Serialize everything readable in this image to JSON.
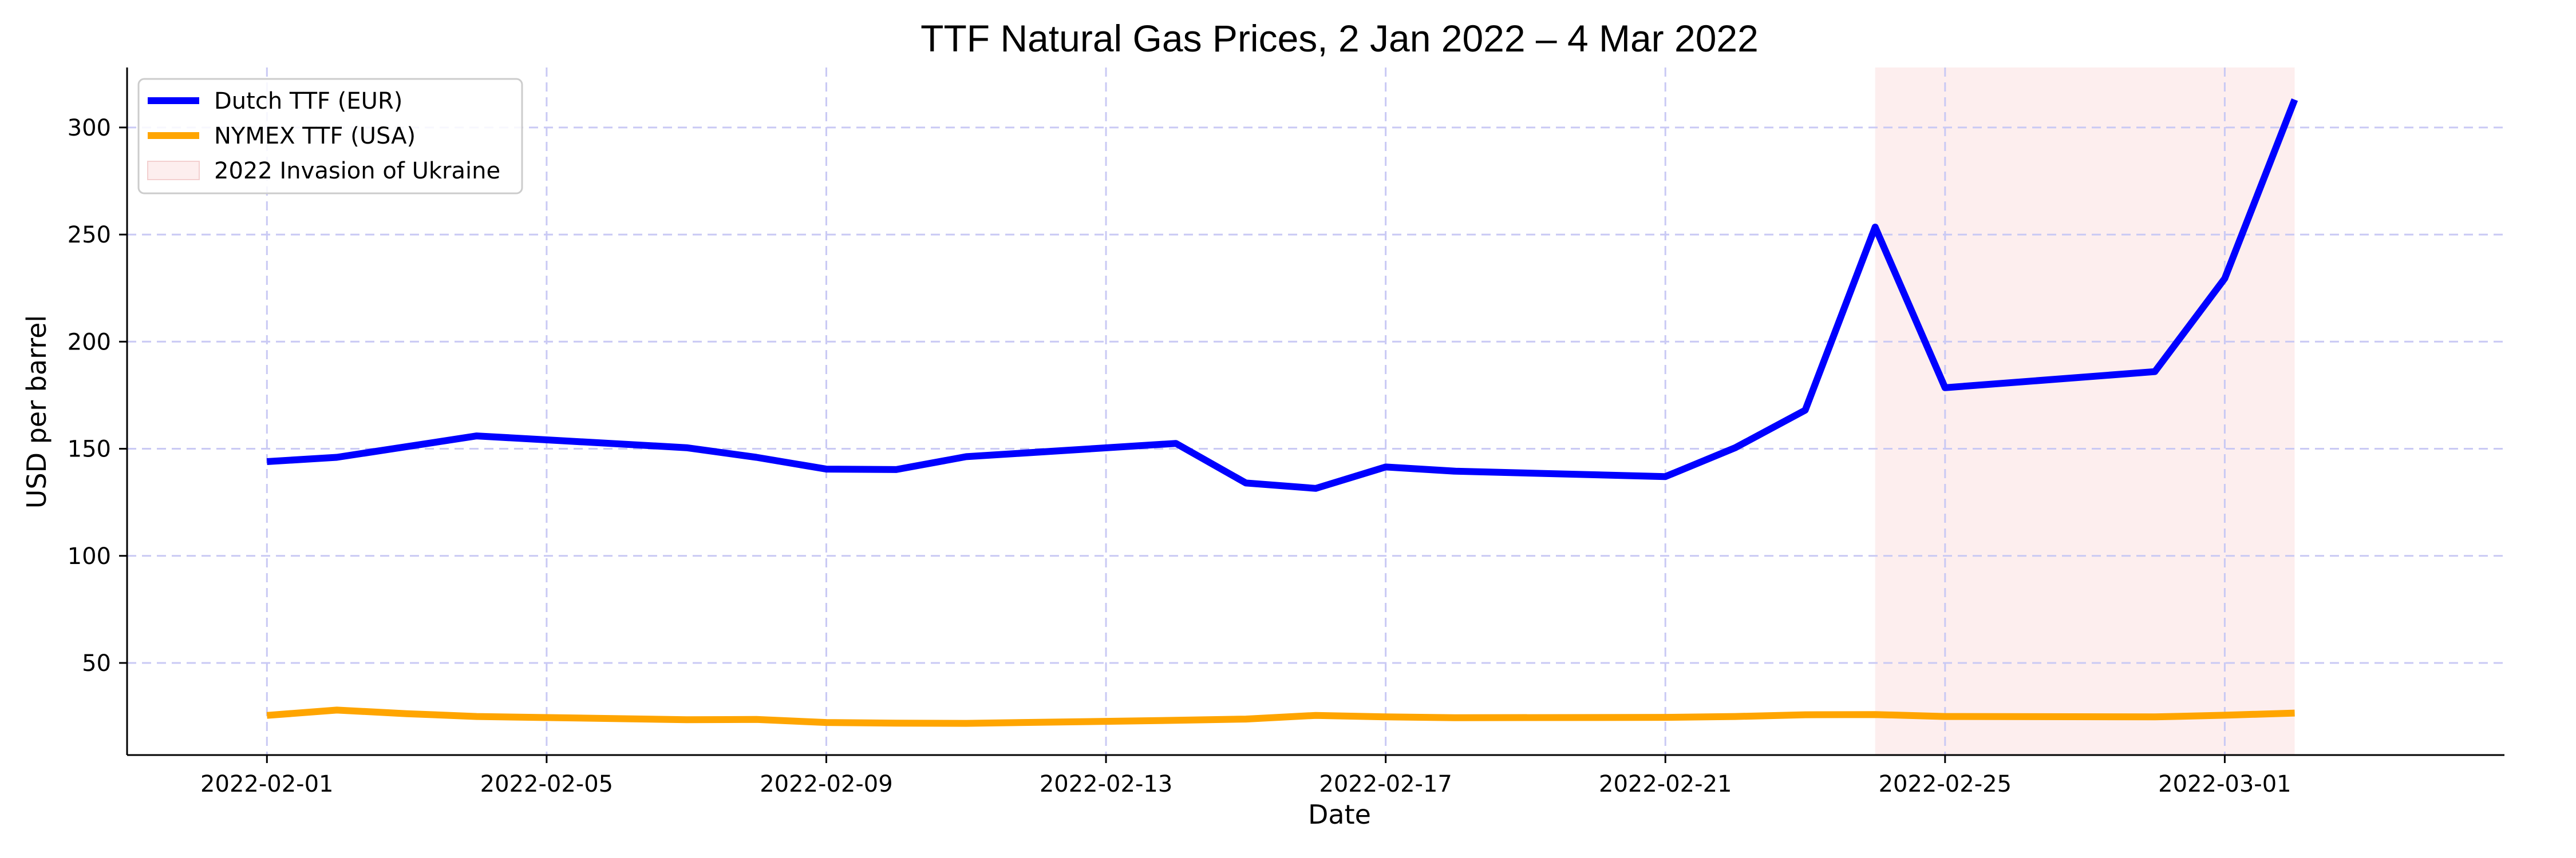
{
  "chart_data": {
    "type": "line",
    "title": "TTF Natural Gas Prices, 2 Jan 2022 – 4 Mar 2022",
    "xlabel": "Date",
    "ylabel": "USD per barrel",
    "x_ticks": [
      "2022-02-01",
      "2022-02-05",
      "2022-02-09",
      "2022-02-13",
      "2022-02-17",
      "2022-02-21",
      "2022-02-25",
      "2022-03-01"
    ],
    "y_ticks": [
      50,
      100,
      150,
      200,
      250,
      300
    ],
    "xlim": [
      "2022-01-30",
      "2022-03-05"
    ],
    "ylim": [
      7,
      328
    ],
    "grid": true,
    "legend_position": "top-left",
    "shaded_region": {
      "label": "2022 Invasion of Ukraine",
      "x_start": "2022-02-24",
      "x_end": "2022-03-02",
      "color": "#fdeeee"
    },
    "series": [
      {
        "name": "Dutch TTF (EUR)",
        "color": "#0000ff",
        "points": [
          {
            "x": "2022-02-01",
            "y": 144
          },
          {
            "x": "2022-02-02",
            "y": 146
          },
          {
            "x": "2022-02-03",
            "y": 151
          },
          {
            "x": "2022-02-04",
            "y": 156
          },
          {
            "x": "2022-02-07",
            "y": 150.5
          },
          {
            "x": "2022-02-08",
            "y": 146
          },
          {
            "x": "2022-02-09",
            "y": 140.5
          },
          {
            "x": "2022-02-10",
            "y": 140.3
          },
          {
            "x": "2022-02-11",
            "y": 146.3
          },
          {
            "x": "2022-02-14",
            "y": 152.5
          },
          {
            "x": "2022-02-15",
            "y": 134
          },
          {
            "x": "2022-02-16",
            "y": 131.5
          },
          {
            "x": "2022-02-17",
            "y": 141.5
          },
          {
            "x": "2022-02-18",
            "y": 139.5
          },
          {
            "x": "2022-02-21",
            "y": 137
          },
          {
            "x": "2022-02-22",
            "y": 150.5
          },
          {
            "x": "2022-02-23",
            "y": 168
          },
          {
            "x": "2022-02-24",
            "y": 253.5
          },
          {
            "x": "2022-02-25",
            "y": 178.5
          },
          {
            "x": "2022-02-28",
            "y": 186
          },
          {
            "x": "2022-03-01",
            "y": 229.5
          },
          {
            "x": "2022-03-02",
            "y": 313
          }
        ]
      },
      {
        "name": "NYMEX TTF (USA)",
        "color": "#ffa500",
        "points": [
          {
            "x": "2022-02-01",
            "y": 25.5
          },
          {
            "x": "2022-02-02",
            "y": 28
          },
          {
            "x": "2022-02-03",
            "y": 26.3
          },
          {
            "x": "2022-02-04",
            "y": 25
          },
          {
            "x": "2022-02-07",
            "y": 23.5
          },
          {
            "x": "2022-02-08",
            "y": 23.6
          },
          {
            "x": "2022-02-09",
            "y": 22.2
          },
          {
            "x": "2022-02-10",
            "y": 21.9
          },
          {
            "x": "2022-02-11",
            "y": 21.8
          },
          {
            "x": "2022-02-14",
            "y": 23.2
          },
          {
            "x": "2022-02-15",
            "y": 23.8
          },
          {
            "x": "2022-02-16",
            "y": 25.5
          },
          {
            "x": "2022-02-17",
            "y": 24.8
          },
          {
            "x": "2022-02-18",
            "y": 24.4
          },
          {
            "x": "2022-02-21",
            "y": 24.6
          },
          {
            "x": "2022-02-22",
            "y": 25
          },
          {
            "x": "2022-02-23",
            "y": 25.8
          },
          {
            "x": "2022-02-24",
            "y": 25.9
          },
          {
            "x": "2022-02-25",
            "y": 25
          },
          {
            "x": "2022-02-28",
            "y": 24.8
          },
          {
            "x": "2022-03-01",
            "y": 25.6
          },
          {
            "x": "2022-03-02",
            "y": 26.6
          }
        ]
      }
    ]
  }
}
